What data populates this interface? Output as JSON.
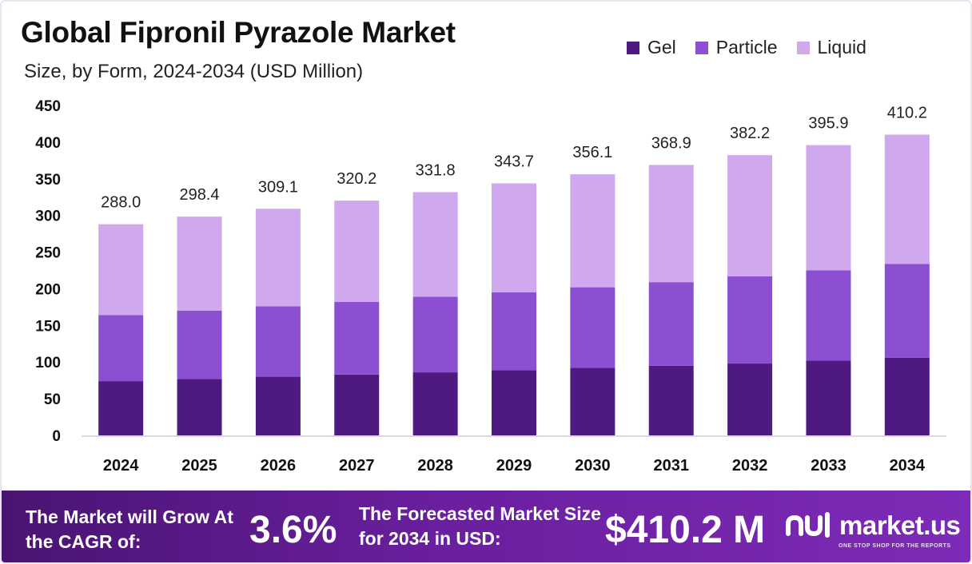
{
  "title": "Global Fipronil Pyrazole Market",
  "subtitle": "Size, by Form, 2024-2034 (USD Million)",
  "colors": {
    "gel": "#4e1a82",
    "particle": "#8d4fd2",
    "liquid": "#d0a8ed",
    "footer_start": "#4a1473",
    "footer_end": "#7d2bb8"
  },
  "chart_data": {
    "type": "bar",
    "stacked": true,
    "categories": [
      "2024",
      "2025",
      "2026",
      "2027",
      "2028",
      "2029",
      "2030",
      "2031",
      "2032",
      "2033",
      "2034"
    ],
    "series": [
      {
        "name": "Gel",
        "values": [
          74,
          77,
          80,
          83,
          86,
          89,
          92,
          95,
          98,
          102,
          106
        ]
      },
      {
        "name": "Particle",
        "values": [
          90,
          93,
          96,
          99,
          103,
          106,
          110,
          114,
          119,
          123,
          128
        ]
      },
      {
        "name": "Liquid",
        "values": [
          124,
          128.4,
          133.1,
          138.2,
          142.8,
          148.7,
          154.1,
          159.9,
          165.2,
          170.9,
          176.2
        ]
      }
    ],
    "totals": [
      "288.0",
      "298.4",
      "309.1",
      "320.2",
      "331.8",
      "343.7",
      "356.1",
      "368.9",
      "382.2",
      "395.9",
      "410.2"
    ],
    "yticks": [
      "0",
      "50",
      "100",
      "150",
      "200",
      "250",
      "300",
      "350",
      "400",
      "450"
    ],
    "ylim": [
      0,
      450
    ],
    "grid": false,
    "legend_position": "top-right"
  },
  "legend": [
    {
      "label": "Gel",
      "color": "#4e1a82"
    },
    {
      "label": "Particle",
      "color": "#8d4fd2"
    },
    {
      "label": "Liquid",
      "color": "#d0a8ed"
    }
  ],
  "footer": {
    "cagr_label": "The Market will Grow At the CAGR of:",
    "cagr_value": "3.6%",
    "size_label": "The Forecasted Market Size for 2034 in USD:",
    "size_value": "$410.2 M",
    "brand_name": "market.us",
    "brand_tagline": "ONE STOP SHOP FOR THE REPORTS",
    "brand_icon": "market-us-logo-icon"
  }
}
